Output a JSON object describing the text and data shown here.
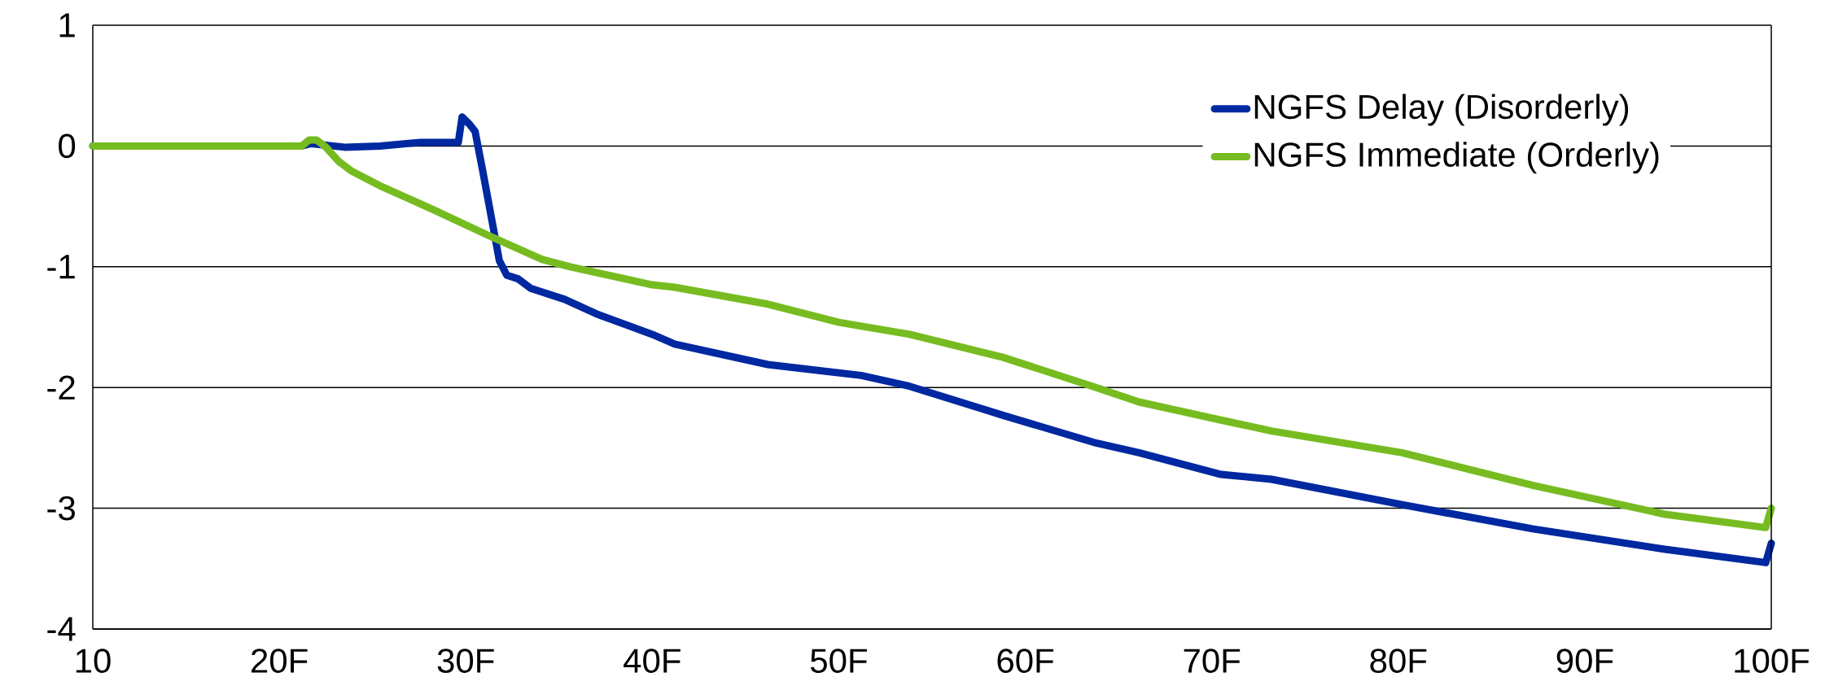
{
  "chart_data": {
    "type": "line",
    "xlim": [
      10,
      100
    ],
    "ylim": [
      -4,
      1
    ],
    "xticks": [
      10,
      {
        "value": 20,
        "label": "20F"
      },
      {
        "value": 30,
        "label": "30F"
      },
      {
        "value": 40,
        "label": "40F"
      },
      {
        "value": 50,
        "label": "50F"
      },
      {
        "value": 60,
        "label": "60F"
      },
      {
        "value": 70,
        "label": "70F"
      },
      {
        "value": 80,
        "label": "80F"
      },
      {
        "value": 90,
        "label": "90F"
      },
      {
        "value": 100,
        "label": "100F"
      }
    ],
    "yticks": [
      -4,
      -3,
      -2,
      -1,
      0,
      1
    ],
    "grid": "y",
    "legend": "top right",
    "marker": "none",
    "line_style": "solid",
    "series": [
      {
        "name": "NGFS Delay (Disorderly)",
        "color": "#0028a0",
        "x": [
          10,
          21.2,
          21.7,
          23.5,
          25.4,
          27.6,
          29.6,
          29.8,
          30.2,
          30.5,
          30.9,
          31.5,
          31.8,
          32.2,
          32.8,
          33.5,
          35.3,
          37.0,
          40.0,
          41.2,
          46.2,
          51.2,
          53.8,
          58.8,
          63.8,
          66.1,
          70.5,
          73.2,
          80.2,
          87.2,
          94.3,
          99.7,
          100
        ],
        "values": [
          0,
          0,
          0.02,
          -0.01,
          0,
          0.03,
          0.03,
          0.24,
          0.18,
          0.12,
          -0.2,
          -0.7,
          -0.95,
          -1.07,
          -1.1,
          -1.18,
          -1.27,
          -1.39,
          -1.56,
          -1.64,
          -1.81,
          -1.9,
          -1.99,
          -2.23,
          -2.46,
          -2.54,
          -2.72,
          -2.76,
          -2.97,
          -3.17,
          -3.34,
          -3.45,
          -3.29
        ]
      },
      {
        "name": "NGFS Immediate (Orderly)",
        "color": "#76bc21",
        "x": [
          10,
          21.2,
          21.6,
          22.0,
          22.5,
          23.2,
          23.9,
          25.4,
          28.3,
          31.2,
          34.1,
          35.6,
          40.0,
          41.2,
          46.2,
          50.0,
          53.8,
          58.8,
          63.8,
          66.1,
          70.5,
          73.2,
          80.2,
          87.2,
          94.3,
          99.7,
          100
        ],
        "values": [
          0,
          0,
          0.05,
          0.05,
          -0.01,
          -0.13,
          -0.21,
          -0.33,
          -0.53,
          -0.74,
          -0.94,
          -1.0,
          -1.15,
          -1.17,
          -1.31,
          -1.46,
          -1.56,
          -1.75,
          -2.0,
          -2.12,
          -2.27,
          -2.36,
          -2.54,
          -2.81,
          -3.05,
          -3.16,
          -3.0
        ]
      }
    ]
  }
}
